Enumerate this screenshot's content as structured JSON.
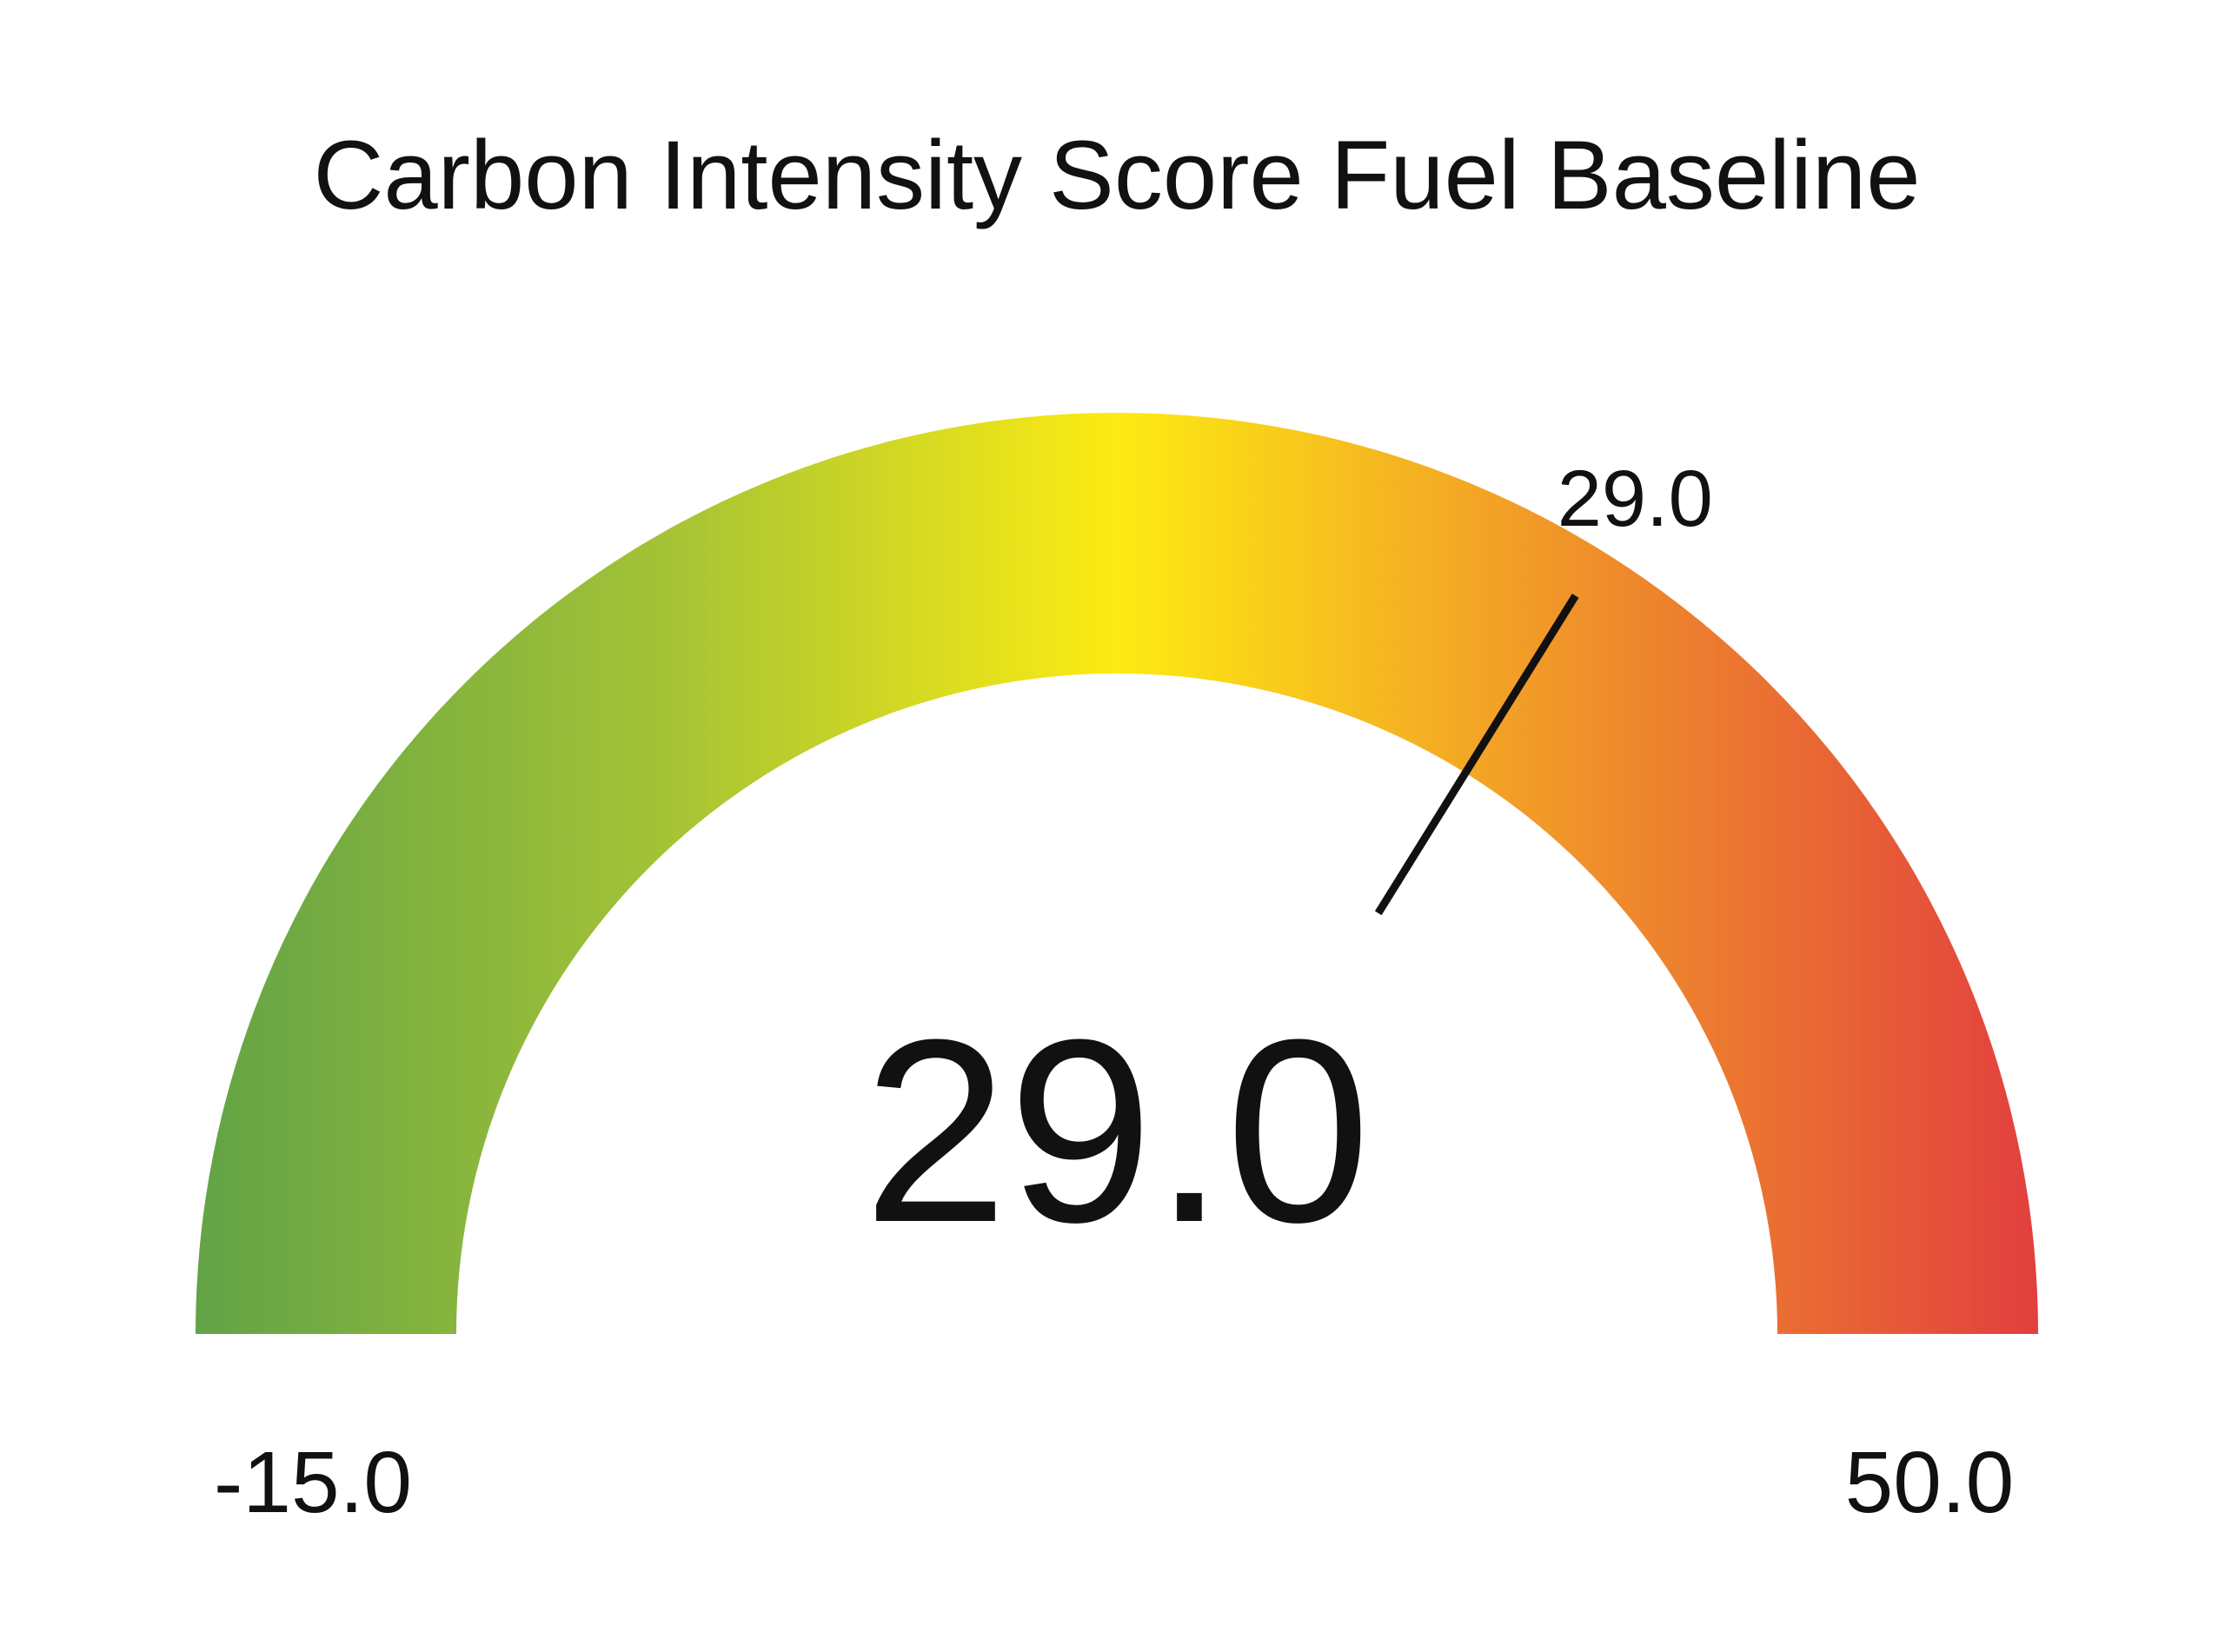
{
  "chart_data": {
    "type": "gauge",
    "title": "Carbon Intensity Score Fuel Baseline",
    "value": 29.0,
    "value_label": "29.0",
    "needle_label": "29.0",
    "min": -15.0,
    "max": 50.0,
    "min_label": "-15.0",
    "max_label": "50.0",
    "gradient_colors": [
      "#62a346",
      "#a3c236",
      "#fdeb13",
      "#f0922a",
      "#e23f3e"
    ]
  }
}
